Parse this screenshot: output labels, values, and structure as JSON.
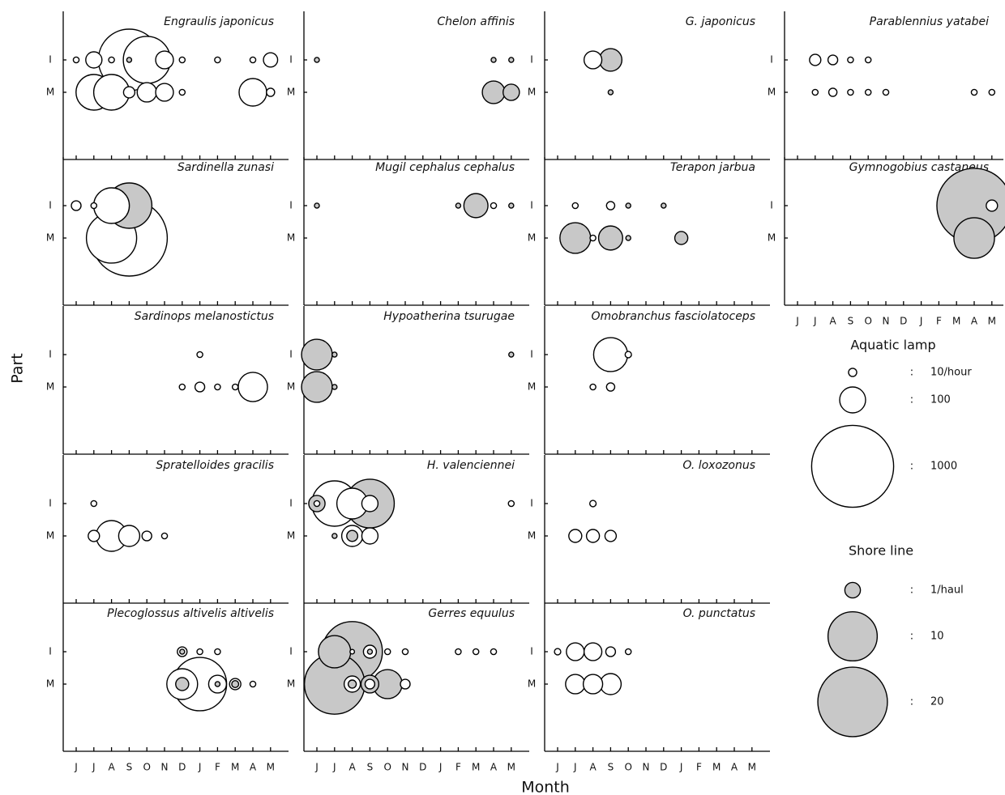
{
  "chart_data": {
    "type": "bubble-grid",
    "xlabel": "Month",
    "ylabel": "Part",
    "categories": [
      "J",
      "J",
      "A",
      "S",
      "O",
      "N",
      "D",
      "J",
      "F",
      "M",
      "A",
      "M"
    ],
    "parts": [
      "I",
      "M"
    ],
    "legend": [
      {
        "name": "Aquatic lamp",
        "color": "#ffffff",
        "sizes": [
          10,
          100,
          1000
        ],
        "size_labels": [
          "10/hour",
          "100",
          "1000"
        ]
      },
      {
        "name": "Shore line",
        "color": "#c8c8c8",
        "sizes": [
          1,
          10,
          20
        ],
        "size_labels": [
          "1/haul",
          "10",
          "20"
        ]
      }
    ],
    "separator": ":",
    "panels": [
      {
        "title": "Engraulis japonicus",
        "series": [
          {
            "x": [
              0,
              1,
              2,
              3,
              4,
              5,
              6,
              8,
              10,
              11,
              1,
              2,
              3,
              4,
              5,
              6,
              10,
              11
            ],
            "y": [
              0,
              0,
              0,
              0,
              0,
              0,
              0,
              0,
              0,
              0,
              1,
              1,
              1,
              1,
              1,
              1,
              1,
              1
            ],
            "size": [
              5,
              39,
              5,
              564,
              330,
              47,
              5,
              5,
              5,
              30,
              189,
              189,
              19,
              56,
              47,
              5,
              113,
              10
            ]
          },
          {
            "x": [
              3
            ],
            "y": [
              0
            ],
            "size": [
              0.1
            ]
          }
        ]
      },
      {
        "title": "Chelon affinis",
        "series": [
          {
            "x": [],
            "y": [],
            "size": []
          },
          {
            "x": [
              0,
              10,
              11,
              10,
              11
            ],
            "y": [
              0,
              0,
              0,
              1,
              1
            ],
            "size": [
              0.1,
              0.1,
              0.1,
              2.1,
              1.1
            ]
          }
        ]
      },
      {
        "title": "G. japonicus",
        "series": [
          {
            "x": [
              2
            ],
            "y": [
              0
            ],
            "size": [
              47
            ]
          },
          {
            "x": [
              3,
              3
            ],
            "y": [
              0,
              1
            ],
            "size": [
              2.1,
              0.1
            ]
          }
        ]
      },
      {
        "title": "Parablennius yatabei",
        "series": [
          {
            "x": [
              1,
              2,
              3,
              4,
              1,
              2,
              3,
              4,
              5,
              10,
              11
            ],
            "y": [
              0,
              0,
              0,
              0,
              1,
              1,
              1,
              1,
              1,
              1,
              1
            ],
            "size": [
              19,
              14,
              5,
              5,
              5,
              10,
              5,
              5,
              5,
              5,
              5
            ]
          },
          {
            "x": [],
            "y": [],
            "size": []
          }
        ]
      },
      {
        "title": "Sardinella zunasi",
        "series": [
          {
            "x": [
              0,
              1,
              2,
              3,
              2
            ],
            "y": [
              0,
              0,
              0,
              1,
              1
            ],
            "size": [
              14,
              5,
              189,
              863,
              375
            ]
          },
          {
            "x": [
              3
            ],
            "y": [
              0
            ],
            "size": [
              8.5
            ]
          }
        ]
      },
      {
        "title": "Mugil cephalus cephalus",
        "series": [
          {
            "x": [
              10
            ],
            "y": [
              0
            ],
            "size": [
              5
            ]
          },
          {
            "x": [
              0,
              8,
              9,
              11
            ],
            "y": [
              0,
              0,
              0,
              0
            ],
            "size": [
              0.1,
              0.1,
              2.4,
              0.1
            ]
          }
        ]
      },
      {
        "title": "Terapon jarbua",
        "series": [
          {
            "x": [
              1,
              3,
              2
            ],
            "y": [
              0,
              0,
              1
            ],
            "size": [
              5,
              10,
              5
            ]
          },
          {
            "x": [
              4,
              6,
              1,
              3,
              4,
              7
            ],
            "y": [
              0,
              0,
              1,
              1,
              1,
              1
            ],
            "size": [
              0.1,
              0.1,
              3.9,
              2.4,
              0.1,
              0.7
            ]
          }
        ]
      },
      {
        "title": "Gymnogobius castaneus",
        "series": [
          {
            "x": [
              11
            ],
            "y": [
              0
            ],
            "size": [
              19
            ]
          },
          {
            "x": [
              10,
              10
            ],
            "y": [
              0,
              1
            ],
            "size": [
              23,
              6.8
            ]
          }
        ]
      },
      {
        "title": "Sardinops melanostictus",
        "series": [
          {
            "x": [
              7,
              6,
              7,
              8,
              9,
              10
            ],
            "y": [
              0,
              1,
              1,
              1,
              1,
              1
            ],
            "size": [
              5,
              5,
              14,
              5,
              5,
              127
            ]
          },
          {
            "x": [],
            "y": [],
            "size": []
          }
        ]
      },
      {
        "title": "Hypoatherina tsurugae",
        "series": [
          {
            "x": [],
            "y": [],
            "size": []
          },
          {
            "x": [
              0,
              1,
              11,
              0,
              1
            ],
            "y": [
              0,
              0,
              0,
              1,
              1
            ],
            "size": [
              3.9,
              0.1,
              0.1,
              3.9,
              0.1
            ]
          }
        ]
      },
      {
        "title": "Omobranchus fasciolatoceps",
        "series": [
          {
            "x": [
              3,
              4,
              2,
              3
            ],
            "y": [
              0,
              0,
              1,
              1
            ],
            "size": [
              172,
              6,
              5,
              10
            ]
          },
          {
            "x": [],
            "y": [],
            "size": []
          }
        ]
      },
      {
        "title": "Spratelloides gracilis",
        "series": [
          {
            "x": [
              1,
              1,
              2,
              3,
              4,
              5
            ],
            "y": [
              0,
              1,
              1,
              1,
              1,
              1
            ],
            "size": [
              5,
              19,
              141,
              66,
              14,
              5
            ]
          },
          {
            "x": [],
            "y": [],
            "size": []
          }
        ]
      },
      {
        "title": "H. valenciennei",
        "series": [
          {
            "x": [
              0,
              1,
              2,
              3,
              11,
              2,
              3
            ],
            "y": [
              0,
              0,
              0,
              0,
              0,
              1,
              1
            ],
            "size": [
              5,
              306,
              141,
              39,
              5,
              66,
              39
            ]
          },
          {
            "x": [
              0,
              3,
              1,
              2
            ],
            "y": [
              0,
              0,
              1,
              1
            ],
            "size": [
              1.1,
              9.8,
              0.1,
              0.5
            ]
          }
        ]
      },
      {
        "title": "O. loxozonus",
        "series": [
          {
            "x": [
              2,
              1,
              2,
              3
            ],
            "y": [
              0,
              1,
              1,
              1
            ],
            "size": [
              6,
              25,
              25,
              19
            ]
          },
          {
            "x": [],
            "y": [],
            "size": []
          }
        ]
      },
      {
        "title": "Plecoglossus altivelis altivelis",
        "series": [
          {
            "x": [
              6,
              7,
              8,
              6,
              7,
              8,
              9,
              10
            ],
            "y": [
              0,
              0,
              0,
              1,
              1,
              1,
              1,
              1
            ],
            "size": [
              14,
              5,
              5,
              141,
              425,
              47,
              19,
              5
            ]
          },
          {
            "x": [
              6,
              6,
              8,
              9
            ],
            "y": [
              0,
              1,
              1,
              1
            ],
            "size": [
              0.1,
              0.7,
              0.1,
              0.2
            ]
          }
        ]
      },
      {
        "title": "Gerres equulus",
        "series": [
          {
            "x": [
              2,
              3,
              4,
              5,
              8,
              9,
              10,
              2,
              3,
              5
            ],
            "y": [
              0,
              0,
              0,
              0,
              0,
              0,
              0,
              1,
              1,
              1
            ],
            "size": [
              3,
              25,
              5,
              5,
              5,
              5,
              5,
              39,
              14,
              14
            ]
          },
          {
            "x": [
              1,
              2,
              3,
              1,
              2,
              3,
              4
            ],
            "y": [
              0,
              0,
              0,
              1,
              1,
              1,
              1
            ],
            "size": [
              4.3,
              15,
              0.1,
              15,
              0.27,
              1.3,
              3.5
            ]
          }
        ]
      },
      {
        "title": "O. punctatus",
        "series": [
          {
            "x": [
              0,
              1,
              2,
              3,
              4,
              1,
              2,
              3
            ],
            "y": [
              0,
              0,
              0,
              0,
              0,
              1,
              1,
              1
            ],
            "size": [
              6,
              47,
              47,
              14,
              5,
              56,
              56,
              66
            ]
          },
          {
            "x": [],
            "y": [],
            "size": []
          }
        ]
      }
    ]
  }
}
